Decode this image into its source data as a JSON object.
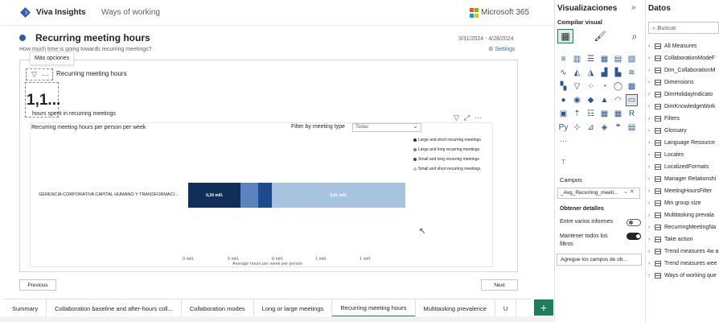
{
  "app": {
    "name": "Viva Insights",
    "nav_link": "Ways of working",
    "brand": "Microsoft 365"
  },
  "report": {
    "title": "Recurring meeting hours",
    "subtitle": "How much time is going towards recurring meetings?",
    "date_range": "3/31/2024 - 4/28/2024",
    "settings_label": "Settings"
  },
  "card": {
    "tooltip": "Más opciones",
    "title": "Recurring meeting hours",
    "kpi_value": "1,1...",
    "kpi_label": "hours spent in recurring meetings"
  },
  "chart_data": {
    "type": "bar",
    "orientation": "horizontal",
    "stacked": true,
    "title": "Recurring meeting hours per person per week",
    "filter_label": "Filter by meeting type",
    "filter_value": "Todas",
    "categories": [
      "GERENCIA CORPORATIVA CAPITAL HUMANO Y TRANSFORMACI..."
    ],
    "series": [
      {
        "name": "Large and short recurring meetings",
        "values": [
          0.24
        ],
        "data_label": "0,24 mill.",
        "color": "#102f58"
      },
      {
        "name": "Large and long recurring meetings",
        "values": [
          0.08
        ],
        "data_label": "",
        "color": "#5b84bf"
      },
      {
        "name": "Small and long recurring meetings",
        "values": [
          0.06
        ],
        "data_label": "",
        "color": "#1e4b8f"
      },
      {
        "name": "Small and short recurring meetings",
        "values": [
          0.61
        ],
        "data_label": "0,61 mill.",
        "color": "#a6c3e0"
      }
    ],
    "x_ticks": [
      "0 mill.",
      "0 mill.",
      "0 mill.",
      "1 mill.",
      "1 mill."
    ],
    "xlabel": "Average hours per week per person",
    "ylabel": "",
    "xlim": [
      0,
      1.2
    ],
    "legend_position": "right"
  },
  "nav_buttons": {
    "previous": "Previous",
    "next": "Next"
  },
  "tabs": [
    {
      "label": "Summary",
      "active": false
    },
    {
      "label": "Collaboration baseline and after-hours coll...",
      "active": false
    },
    {
      "label": "Collaboration modes",
      "active": false
    },
    {
      "label": "Long or large meetings",
      "active": false
    },
    {
      "label": "Recurring meeting hours",
      "active": true
    },
    {
      "label": "Multitasking prevalence",
      "active": false
    },
    {
      "label": "U",
      "active": false
    }
  ],
  "add_tab": "+",
  "visualizations": {
    "title": "Visualizaciones",
    "collapse": "»",
    "build_label": "Compilar visual",
    "icons": [
      "stacked-bar",
      "stacked-column",
      "clustered-bar",
      "clustered-column",
      "100-bar",
      "100-column",
      "line",
      "area",
      "stacked-area",
      "line-column",
      "line-clustered",
      "ribbon",
      "waterfall",
      "funnel",
      "scatter",
      "pie",
      "donut",
      "treemap",
      "map",
      "filled-map",
      "shape-map",
      "azure-map",
      "gauge",
      "card",
      "multi-card",
      "kpi",
      "slicer",
      "table",
      "matrix",
      "r-visual",
      "python-visual",
      "key-influencers",
      "decomp-tree",
      "qa",
      "smart-narrative",
      "paginated",
      "more-visuals"
    ],
    "icon_glyphs": [
      "≡",
      "▥",
      "☰",
      "▦",
      "▤",
      "▧",
      "∿",
      "◭",
      "◮",
      "▟",
      "▙",
      "≋",
      "▚",
      "▽",
      "⁘",
      "◔",
      "◯",
      "▩",
      "●",
      "◉",
      "◆",
      "▲",
      "◠",
      "▭",
      "▣",
      "⇡",
      "☷",
      "▦",
      "▦",
      "R",
      "Py",
      "⊹",
      "⊿",
      "◈",
      "❝",
      "▤",
      "···"
    ],
    "format_glyph": "T",
    "fields_label": "Campos",
    "field_value": "_Avg_Recurring_meeti...",
    "drillthrough_title": "Obtener detalles",
    "cross_report_label": "Entre varios informes",
    "cross_report_state": "Desactivado",
    "keep_filters_label": "Mantener todos los filtros",
    "keep_filters_state": "Activado",
    "drill_placeholder": "Agregue los campos de ob..."
  },
  "data_pane": {
    "title": "Datos",
    "search_placeholder": "Buscar",
    "items": [
      "All Measures",
      "CollaborationModeF",
      "Dim_CollaborationM",
      "Dimensions",
      "DimHolidayIndicato",
      "DimKnowledgeWork",
      "Filters",
      "Glossary",
      "Language Resource",
      "Locales",
      "LocalizedFormats",
      "Manager Relationshi",
      "MeetingHoursFilter",
      "Min group size",
      "Multitasking prevala",
      "RecurringMeetingNa",
      "Take action",
      "Trend measures 4w a",
      "Trend measures wee",
      "Ways of working que"
    ]
  },
  "colors": {
    "accent_green": "#1a7f5a",
    "brand_blue": "#2c5fa8",
    "ms_red": "#f25022",
    "ms_green": "#7fba00",
    "ms_blue": "#00a4ef",
    "ms_yellow": "#ffb900"
  }
}
